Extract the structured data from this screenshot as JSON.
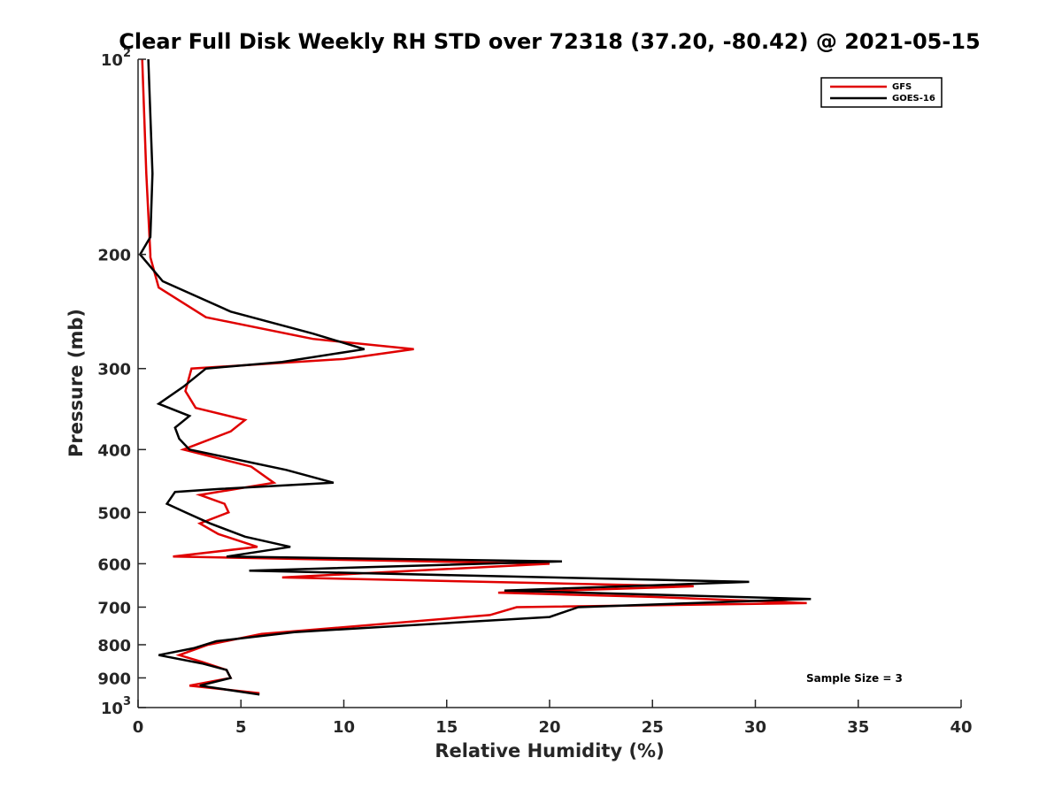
{
  "chart_data": {
    "type": "line",
    "title": "Clear Full Disk Weekly RH STD over 72318 (37.20, -80.42) @ 2021-05-15",
    "xlabel": "Relative Humidity (%)",
    "ylabel": "Pressure (mb)",
    "xlim": [
      0,
      40
    ],
    "ylim": [
      100,
      1000
    ],
    "y_scale": "log",
    "y_reversed": true,
    "grid": false,
    "legend_position": "top-right",
    "x_ticks": [
      "0",
      "5",
      "10",
      "15",
      "20",
      "25",
      "30",
      "35",
      "40"
    ],
    "y_ticks": [
      {
        "value": 100,
        "base": "10",
        "exp": "2"
      },
      {
        "value": 200,
        "base": "200",
        "exp": ""
      },
      {
        "value": 300,
        "base": "300",
        "exp": ""
      },
      {
        "value": 400,
        "base": "400",
        "exp": ""
      },
      {
        "value": 500,
        "base": "500",
        "exp": ""
      },
      {
        "value": 600,
        "base": "600",
        "exp": ""
      },
      {
        "value": 700,
        "base": "700",
        "exp": ""
      },
      {
        "value": 800,
        "base": "800",
        "exp": ""
      },
      {
        "value": 900,
        "base": "900",
        "exp": ""
      },
      {
        "value": 1000,
        "base": "10",
        "exp": "3"
      }
    ],
    "annotation": "Sample Size = 3",
    "series": [
      {
        "name": "GFS",
        "color": "#e00000",
        "points": [
          [
            0.2,
            100
          ],
          [
            0.4,
            150
          ],
          [
            0.6,
            200
          ],
          [
            0.6,
            202
          ],
          [
            1.0,
            225
          ],
          [
            3.3,
            250
          ],
          [
            8.5,
            270
          ],
          [
            13.4,
            280
          ],
          [
            10.0,
            290
          ],
          [
            2.6,
            300
          ],
          [
            2.3,
            325
          ],
          [
            2.8,
            345
          ],
          [
            5.2,
            360
          ],
          [
            4.5,
            375
          ],
          [
            2.2,
            400
          ],
          [
            5.5,
            425
          ],
          [
            6.6,
            450
          ],
          [
            3.0,
            470
          ],
          [
            4.2,
            485
          ],
          [
            4.4,
            500
          ],
          [
            3.0,
            520
          ],
          [
            3.9,
            540
          ],
          [
            5.8,
            565
          ],
          [
            1.7,
            585
          ],
          [
            20.0,
            600
          ],
          [
            7.0,
            630
          ],
          [
            27.0,
            650
          ],
          [
            17.5,
            665
          ],
          [
            25.0,
            675
          ],
          [
            32.5,
            690
          ],
          [
            18.4,
            700
          ],
          [
            17.1,
            720
          ],
          [
            6.0,
            770
          ],
          [
            3.4,
            800
          ],
          [
            2.0,
            830
          ],
          [
            3.1,
            850
          ],
          [
            4.3,
            875
          ],
          [
            4.5,
            900
          ],
          [
            2.5,
            925
          ],
          [
            5.9,
            950
          ]
        ]
      },
      {
        "name": "GOES-16",
        "color": "#000000",
        "points": [
          [
            0.5,
            100
          ],
          [
            0.7,
            150
          ],
          [
            0.6,
            188
          ],
          [
            0.1,
            200
          ],
          [
            1.2,
            220
          ],
          [
            4.5,
            245
          ],
          [
            8.5,
            265
          ],
          [
            11.0,
            280
          ],
          [
            7.0,
            293
          ],
          [
            3.3,
            300
          ],
          [
            2.2,
            320
          ],
          [
            1.0,
            340
          ],
          [
            2.5,
            355
          ],
          [
            1.8,
            370
          ],
          [
            2.0,
            385
          ],
          [
            2.5,
            400
          ],
          [
            7.2,
            430
          ],
          [
            9.5,
            450
          ],
          [
            4.0,
            460
          ],
          [
            1.8,
            465
          ],
          [
            1.4,
            485
          ],
          [
            2.3,
            500
          ],
          [
            3.5,
            520
          ],
          [
            5.2,
            545
          ],
          [
            7.4,
            565
          ],
          [
            4.3,
            585
          ],
          [
            20.6,
            595
          ],
          [
            5.4,
            615
          ],
          [
            29.7,
            640
          ],
          [
            17.8,
            660
          ],
          [
            32.7,
            680
          ],
          [
            21.4,
            700
          ],
          [
            20.0,
            725
          ],
          [
            7.6,
            765
          ],
          [
            3.8,
            790
          ],
          [
            2.7,
            810
          ],
          [
            1.0,
            830
          ],
          [
            3.1,
            855
          ],
          [
            4.3,
            875
          ],
          [
            4.5,
            900
          ],
          [
            3.0,
            925
          ],
          [
            5.9,
            955
          ]
        ]
      }
    ]
  }
}
